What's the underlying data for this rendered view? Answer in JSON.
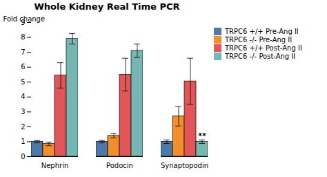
{
  "chart_data": {
    "type": "bar",
    "title": "Whole Kidney Real Time PCR",
    "ylabel": "Fold change",
    "categories": [
      "Nephrin",
      "Podocin",
      "Synaptopodin"
    ],
    "series": [
      {
        "name": "TRPC6 +/+ Pre-Ang II",
        "values": [
          1.0,
          1.0,
          1.0
        ],
        "errors": [
          0.08,
          0.08,
          0.12
        ]
      },
      {
        "name": "TRPC6 -/- Pre-Ang II",
        "values": [
          0.85,
          1.4,
          2.7
        ],
        "errors": [
          0.12,
          0.15,
          0.65
        ]
      },
      {
        "name": "TRPC6 +/+ Post-Ang II",
        "values": [
          5.45,
          5.5,
          5.05
        ],
        "errors": [
          0.85,
          1.1,
          1.55
        ]
      },
      {
        "name": "TRPC6 -/- Post-Ang II",
        "values": [
          7.9,
          7.1,
          1.0
        ],
        "errors": [
          0.35,
          0.45,
          0.12
        ]
      }
    ],
    "annotations": [
      {
        "text": "**",
        "category": "Synaptopodin",
        "series": "TRPC6 -/- Post-Ang II"
      }
    ],
    "ylim": [
      0,
      9
    ],
    "yticks": [
      0,
      1,
      2,
      3,
      4,
      5,
      6,
      7,
      8,
      9
    ],
    "grid": false,
    "legend": "upper right"
  }
}
